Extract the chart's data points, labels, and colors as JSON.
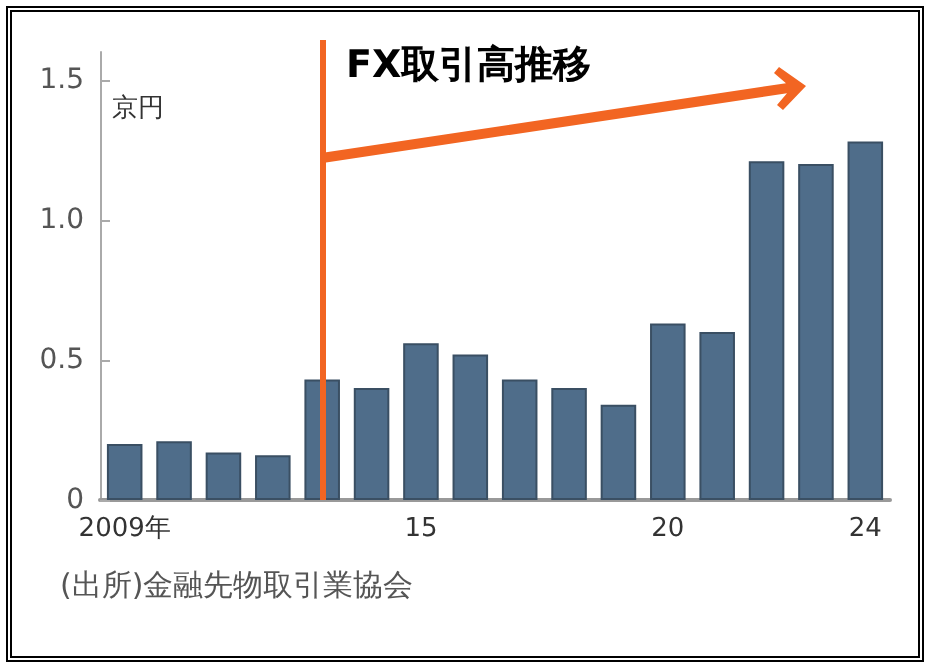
{
  "chart_data": {
    "type": "bar",
    "title": "FX取引高推移",
    "ylabel": "京円",
    "categories": [
      "2009年",
      null,
      null,
      null,
      null,
      null,
      "15",
      null,
      null,
      null,
      null,
      "20",
      null,
      null,
      null,
      "24"
    ],
    "values": [
      0.2,
      0.21,
      0.17,
      0.16,
      0.43,
      0.4,
      0.56,
      0.52,
      0.43,
      0.4,
      0.34,
      0.63,
      0.6,
      1.21,
      1.2,
      1.28
    ],
    "color": "#4f6d8a",
    "ylim": [
      0,
      1.6
    ],
    "yticks": [
      0,
      {
        "value": 0.5,
        "label": "0.5"
      },
      {
        "value": 1,
        "label": "1.0"
      },
      {
        "value": 1.5,
        "label": "1.5"
      }
    ],
    "grid": false,
    "annotations": [
      "(出所)金融先物取引業協会"
    ]
  }
}
